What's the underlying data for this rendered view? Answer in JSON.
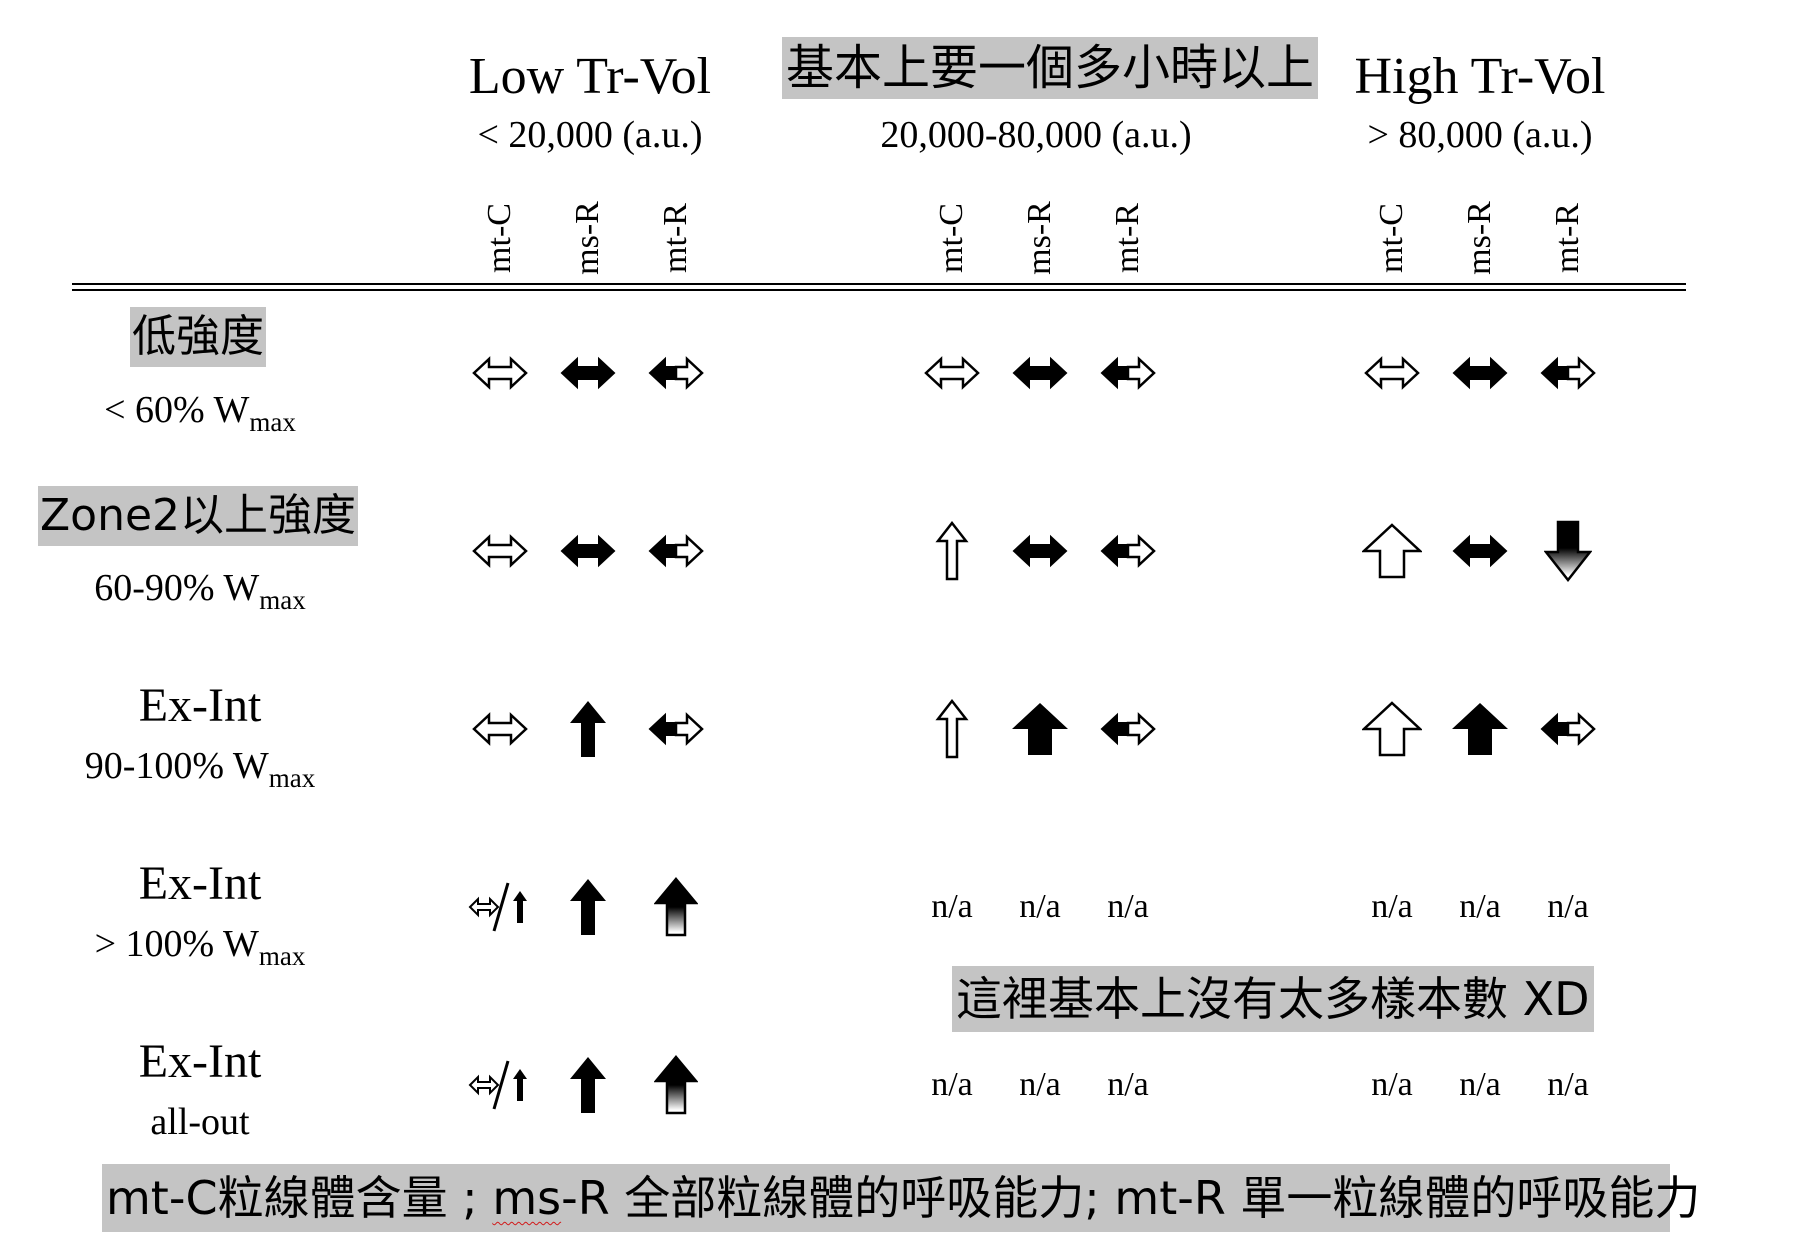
{
  "columns": [
    {
      "title": "Low Tr-Vol",
      "range": "< 20,000 (a.u.)"
    },
    {
      "note": "基本上要一個多小時以上",
      "range": "20,000-80,000 (a.u.)"
    },
    {
      "title": "High Tr-Vol",
      "range": "> 80,000 (a.u.)"
    }
  ],
  "sub_columns": [
    "mt-C",
    "ms-R",
    "mt-R"
  ],
  "rows": [
    {
      "title": "低強度",
      "sub_main": "< 60% W",
      "sub_index": "max",
      "cells": [
        "dbl-outline",
        "dbl-solid",
        "dbl-half",
        "dbl-outline",
        "dbl-solid",
        "dbl-half",
        "dbl-outline",
        "dbl-solid",
        "dbl-half"
      ]
    },
    {
      "title": "Zone2以上強度",
      "sub_main": "60-90% W",
      "sub_index": "max",
      "cells": [
        "dbl-outline",
        "dbl-solid",
        "dbl-half",
        "up-outline-thin",
        "dbl-solid",
        "dbl-half",
        "up-outline-wide",
        "dbl-solid",
        "down-gradient"
      ]
    },
    {
      "title": "Ex-Int",
      "sub_main": "90-100% W",
      "sub_index": "max",
      "cells": [
        "dbl-outline",
        "up-solid-thin",
        "dbl-half",
        "up-outline-thin",
        "up-solid-wide",
        "dbl-half",
        "up-outline-wide",
        "up-solid-wide",
        "dbl-half"
      ]
    },
    {
      "title": "Ex-Int",
      "sub_main": "> 100% W",
      "sub_index": "max",
      "cells": [
        "dbl-or-up",
        "up-solid-thin",
        "up-gradient",
        "n/a",
        "n/a",
        "n/a",
        "n/a",
        "n/a",
        "n/a"
      ]
    },
    {
      "title": "Ex-Int",
      "sub_main": "all-out",
      "sub_index": "",
      "cells": [
        "dbl-or-up",
        "up-solid-thin",
        "up-gradient",
        "n/a",
        "n/a",
        "n/a",
        "n/a",
        "n/a",
        "n/a"
      ]
    }
  ],
  "annotation": "這裡基本上沒有太多樣本數 XD",
  "legend": {
    "part1": "mt-C粒線體含量 ; ",
    "part2": "ms",
    "part3": "-R 全部粒線體的呼吸能力;  mt-R 單一粒線體的呼吸能力"
  },
  "colors": {
    "highlight": "#c4c4c4",
    "arrow": "#000000"
  }
}
